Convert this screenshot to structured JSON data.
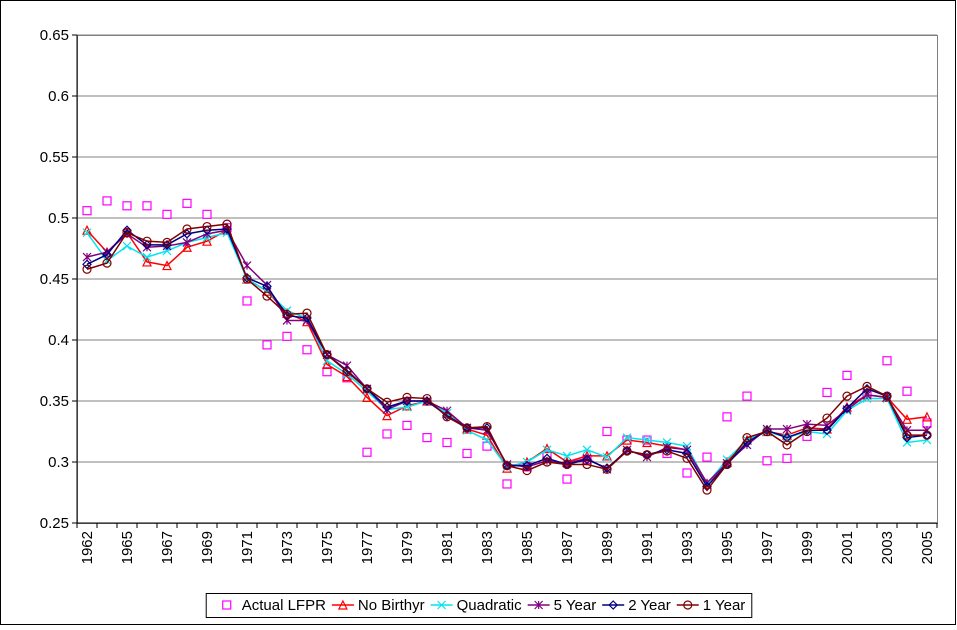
{
  "chart_data": {
    "type": "line",
    "categories": [
      "1962",
      null,
      "1965",
      null,
      "1967",
      null,
      "1969",
      null,
      "1971",
      null,
      "1973",
      null,
      "1975",
      null,
      "1977",
      null,
      "1979",
      null,
      "1981",
      null,
      "1983",
      null,
      "1985",
      null,
      "1987",
      null,
      "1989",
      null,
      "1991",
      null,
      "1993",
      null,
      "1995",
      null,
      "1997",
      null,
      "1999",
      null,
      "2001",
      null,
      "2003",
      null,
      "2005"
    ],
    "ylim": [
      0.25,
      0.65
    ],
    "yticks": [
      0.25,
      0.3,
      0.35,
      0.4,
      0.45,
      0.5,
      0.55,
      0.6,
      0.65
    ],
    "grid": true,
    "legend": "bottom",
    "series": [
      {
        "name": "Actual LFPR",
        "color": "#ff00ff",
        "marker": "square",
        "line": false,
        "values": [
          0.506,
          0.514,
          0.51,
          0.51,
          0.503,
          0.512,
          0.503,
          0.492,
          0.432,
          0.396,
          0.403,
          0.392,
          0.374,
          0.369,
          0.308,
          0.323,
          0.33,
          0.32,
          0.316,
          0.307,
          0.313,
          0.282,
          0.296,
          0.305,
          0.286,
          0.302,
          0.325,
          0.318,
          0.318,
          0.307,
          0.291,
          0.304,
          0.337,
          0.354,
          0.301,
          0.303,
          0.321,
          0.357,
          0.371,
          0.355,
          0.383,
          0.358,
          0.332
        ]
      },
      {
        "name": "No Birthyr",
        "color": "#ff0000",
        "marker": "triangle",
        "line": true,
        "values": [
          0.49,
          0.472,
          0.488,
          0.464,
          0.461,
          0.476,
          0.481,
          0.49,
          0.45,
          0.44,
          0.422,
          0.415,
          0.38,
          0.37,
          0.353,
          0.338,
          0.346,
          0.35,
          0.34,
          0.327,
          0.322,
          0.295,
          0.3,
          0.311,
          0.3,
          0.305,
          0.305,
          0.318,
          0.316,
          0.313,
          0.31,
          0.282,
          0.3,
          0.318,
          0.325,
          0.322,
          0.328,
          0.327,
          0.345,
          0.355,
          0.353,
          0.335,
          0.337
        ]
      },
      {
        "name": "Quadratic",
        "color": "#00e5ee",
        "marker": "x",
        "line": true,
        "values": [
          0.488,
          0.465,
          0.477,
          0.468,
          0.473,
          0.48,
          0.484,
          0.488,
          0.45,
          0.44,
          0.424,
          0.418,
          0.383,
          0.372,
          0.358,
          0.343,
          0.345,
          0.35,
          0.34,
          0.326,
          0.318,
          0.296,
          0.3,
          0.31,
          0.305,
          0.31,
          0.304,
          0.32,
          0.318,
          0.316,
          0.313,
          0.282,
          0.302,
          0.318,
          0.325,
          0.32,
          0.325,
          0.323,
          0.342,
          0.352,
          0.352,
          0.316,
          0.318
        ]
      },
      {
        "name": "5 Year",
        "color": "#800080",
        "marker": "star",
        "line": true,
        "values": [
          0.468,
          0.472,
          0.487,
          0.476,
          0.477,
          0.48,
          0.487,
          0.49,
          0.461,
          0.445,
          0.416,
          0.416,
          0.388,
          0.379,
          0.36,
          0.343,
          0.35,
          0.35,
          0.342,
          0.328,
          0.326,
          0.298,
          0.296,
          0.301,
          0.299,
          0.303,
          0.294,
          0.31,
          0.304,
          0.312,
          0.31,
          0.283,
          0.299,
          0.314,
          0.327,
          0.327,
          0.331,
          0.33,
          0.343,
          0.355,
          0.353,
          0.326,
          0.326
        ]
      },
      {
        "name": "2 Year",
        "color": "#000080",
        "marker": "diamond",
        "line": true,
        "values": [
          0.462,
          0.47,
          0.49,
          0.478,
          0.478,
          0.487,
          0.49,
          0.491,
          0.451,
          0.444,
          0.42,
          0.418,
          0.388,
          0.375,
          0.36,
          0.345,
          0.35,
          0.35,
          0.338,
          0.328,
          0.328,
          0.297,
          0.297,
          0.303,
          0.298,
          0.302,
          0.295,
          0.309,
          0.306,
          0.31,
          0.307,
          0.28,
          0.298,
          0.316,
          0.326,
          0.32,
          0.326,
          0.326,
          0.344,
          0.36,
          0.354,
          0.32,
          0.322
        ]
      },
      {
        "name": "1 Year",
        "color": "#800000",
        "marker": "circle",
        "line": true,
        "values": [
          0.458,
          0.463,
          0.488,
          0.481,
          0.48,
          0.491,
          0.493,
          0.495,
          0.45,
          0.436,
          0.421,
          0.422,
          0.388,
          0.374,
          0.36,
          0.349,
          0.353,
          0.352,
          0.337,
          0.328,
          0.329,
          0.297,
          0.293,
          0.3,
          0.298,
          0.298,
          0.294,
          0.309,
          0.306,
          0.309,
          0.303,
          0.277,
          0.298,
          0.32,
          0.325,
          0.314,
          0.325,
          0.336,
          0.354,
          0.362,
          0.354,
          0.322,
          0.322
        ]
      }
    ]
  }
}
